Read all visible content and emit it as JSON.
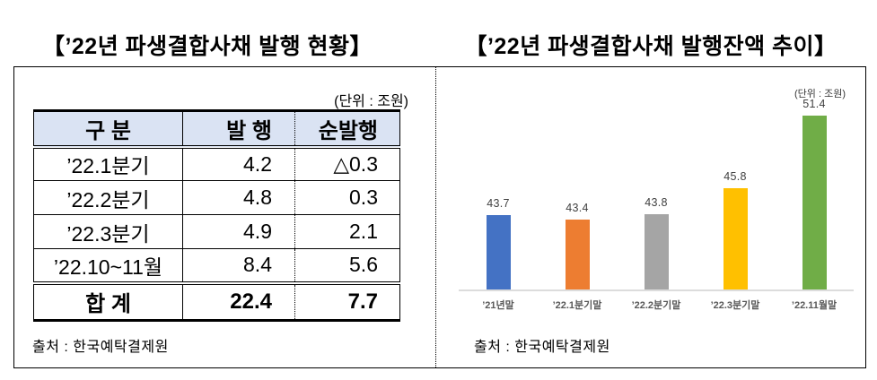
{
  "left_panel": {
    "title": "【’22년 파생결합사채 발행 현황】",
    "unit_label": "(단위 : 조원)",
    "table": {
      "header_bg": "#DAE3F3",
      "headers": [
        "구 분",
        "발 행",
        "순발행"
      ],
      "rows": [
        [
          "’22.1분기",
          "4.2",
          "△0.3"
        ],
        [
          "’22.2분기",
          "4.8",
          "0.3"
        ],
        [
          "’22.3분기",
          "4.9",
          "2.1"
        ],
        [
          "’22.10~11월",
          "8.4",
          "5.6"
        ]
      ],
      "total_row": [
        "합 계",
        "22.4",
        "7.7"
      ]
    },
    "source": "출처 : 한국예탁결제원"
  },
  "right_panel": {
    "title": "【’22년 파생결합사채 발행잔액 추이】",
    "unit_label": "(단위 : 조원)",
    "source": "출처 : 한국예탁결제원"
  },
  "chart_data": {
    "type": "bar",
    "title": "’22년 파생결합사채 발행잔액 추이",
    "unit": "조원",
    "categories": [
      "’21년말",
      "’22.1분기말",
      "’22.2분기말",
      "’22.3분기말",
      "’22.11월말"
    ],
    "values": [
      43.7,
      43.4,
      43.8,
      45.8,
      51.4
    ],
    "bar_colors": [
      "#4472C4",
      "#ED7D31",
      "#A5A5A5",
      "#FFC000",
      "#70AD47"
    ],
    "value_labels": true,
    "legend": false,
    "grid": false,
    "ylim": [
      38,
      52
    ],
    "axis_line_color": "#DCDCDC",
    "value_label_color": "#404040",
    "category_label_color": "#595959"
  }
}
